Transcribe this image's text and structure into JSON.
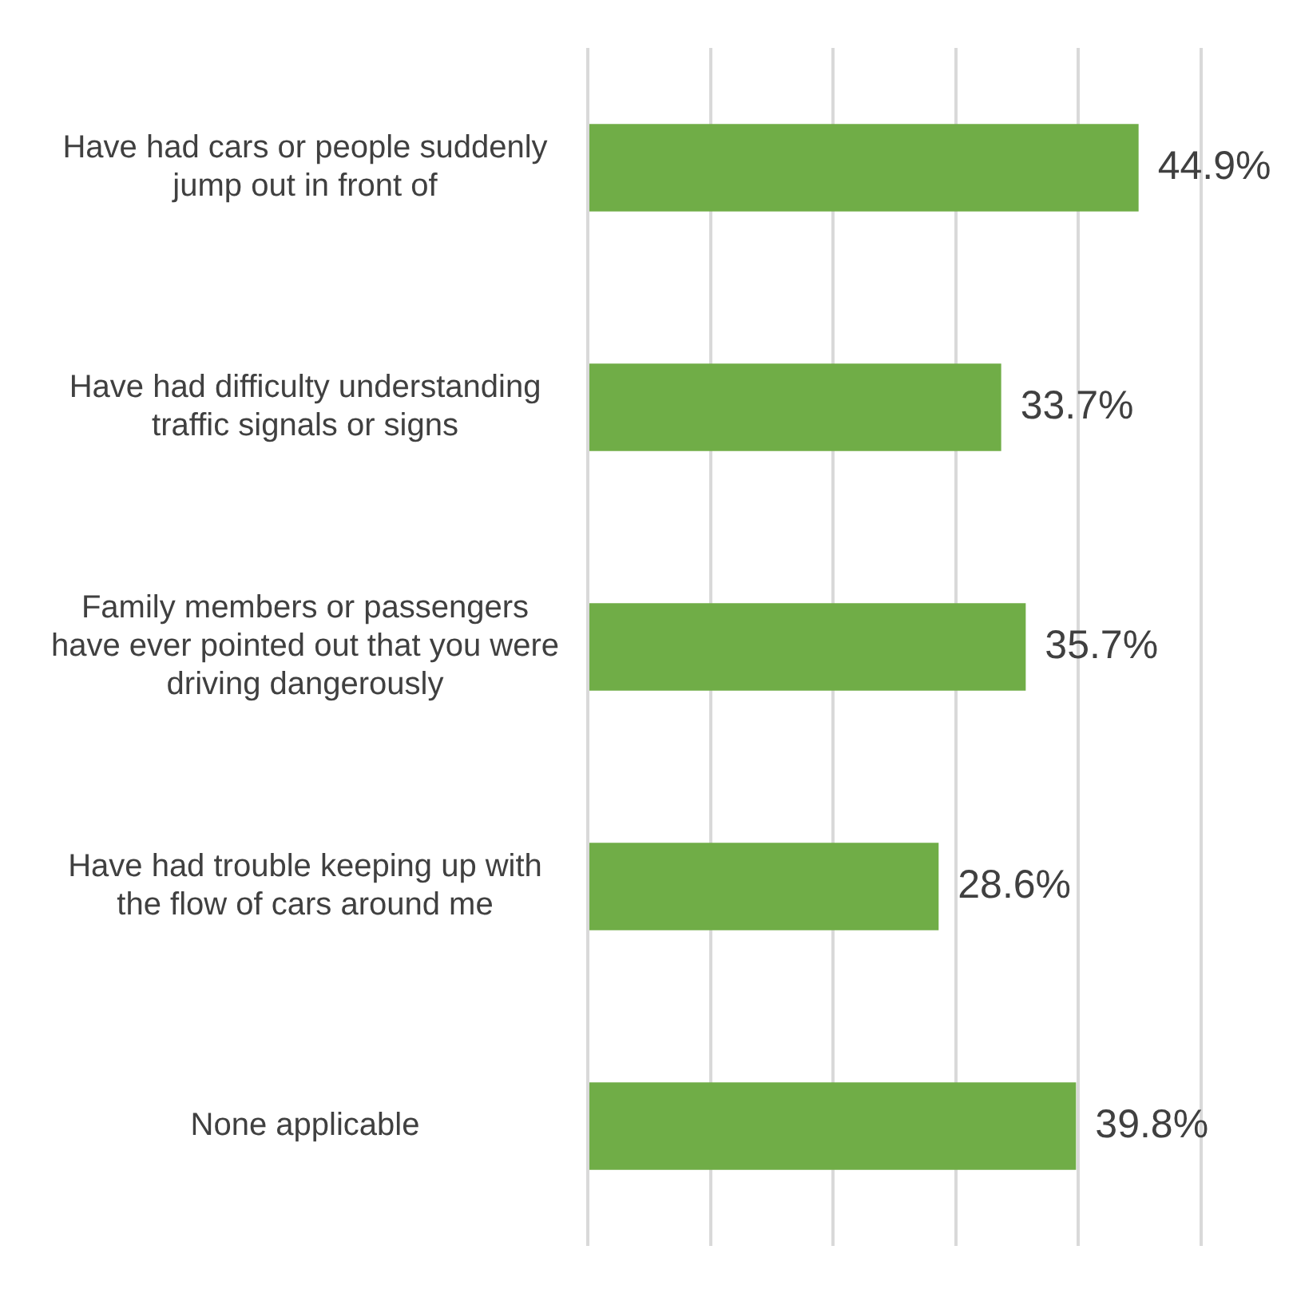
{
  "chart_data": {
    "type": "bar",
    "orientation": "horizontal",
    "categories": [
      "Have had cars or people suddenly jump out in front of",
      "Have had difficulty understanding traffic signals or signs",
      "Family members or passengers have ever pointed out that you were driving dangerously",
      "Have had trouble keeping up with the flow of cars around me",
      "None applicable"
    ],
    "values": [
      44.9,
      33.7,
      35.7,
      28.6,
      39.8
    ],
    "value_labels": [
      "44.9%",
      "33.7%",
      "35.7%",
      "28.6%",
      "39.8%"
    ],
    "color": "#70ad47",
    "xlim": [
      0,
      50
    ],
    "xticks": [
      {
        "value": 0,
        "label": null
      },
      {
        "value": 10,
        "label": null
      },
      {
        "value": 20,
        "label": null
      },
      {
        "value": 30,
        "label": null
      },
      {
        "value": 40,
        "label": null
      },
      {
        "value": 50,
        "label": null
      }
    ],
    "tick_labels": "y",
    "grid": "x",
    "legend": false
  }
}
